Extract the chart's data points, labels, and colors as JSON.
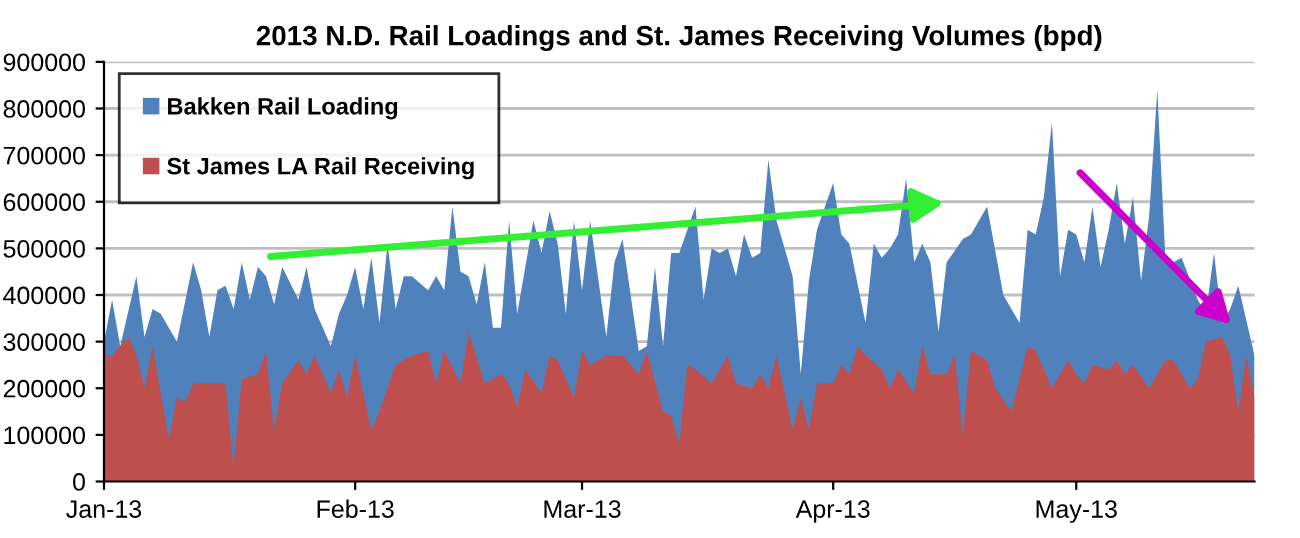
{
  "chart_data": {
    "type": "area",
    "title": "2013 N.D. Rail Loadings and St. James Receiving Volumes (bpd)",
    "series": [
      {
        "name": "Bakken Rail Loading",
        "color": "#4f81bd",
        "x": [
          "2013-01-01",
          "2013-01-02",
          "2013-01-03",
          "2013-01-05",
          "2013-01-06",
          "2013-01-07",
          "2013-01-08",
          "2013-01-09",
          "2013-01-10",
          "2013-01-12",
          "2013-01-13",
          "2013-01-14",
          "2013-01-15",
          "2013-01-16",
          "2013-01-17",
          "2013-01-18",
          "2013-01-19",
          "2013-01-20",
          "2013-01-21",
          "2013-01-22",
          "2013-01-23",
          "2013-01-25",
          "2013-01-26",
          "2013-01-27",
          "2013-01-29",
          "2013-01-30",
          "2013-01-31",
          "2013-02-01",
          "2013-02-02",
          "2013-02-03",
          "2013-02-04",
          "2013-02-05",
          "2013-02-06",
          "2013-02-07",
          "2013-02-08",
          "2013-02-10",
          "2013-02-11",
          "2013-02-12",
          "2013-02-13",
          "2013-02-14",
          "2013-02-15",
          "2013-02-16",
          "2013-02-17",
          "2013-02-18",
          "2013-02-19",
          "2013-02-20",
          "2013-02-21",
          "2013-02-23",
          "2013-02-24",
          "2013-02-25",
          "2013-02-26",
          "2013-02-27",
          "2013-02-28",
          "2013-03-01",
          "2013-03-02",
          "2013-03-04",
          "2013-03-05",
          "2013-03-06",
          "2013-03-08",
          "2013-03-09",
          "2013-03-10",
          "2013-03-11",
          "2013-03-12",
          "2013-03-13",
          "2013-03-15",
          "2013-03-16",
          "2013-03-17",
          "2013-03-18",
          "2013-03-19",
          "2013-03-20",
          "2013-03-21",
          "2013-03-22",
          "2013-03-23",
          "2013-03-24",
          "2013-03-25",
          "2013-03-27",
          "2013-03-28",
          "2013-03-29",
          "2013-03-30",
          "2013-04-01",
          "2013-04-02",
          "2013-04-03",
          "2013-04-05",
          "2013-04-06",
          "2013-04-07",
          "2013-04-08",
          "2013-04-09",
          "2013-04-10",
          "2013-04-11",
          "2013-04-12",
          "2013-04-13",
          "2013-04-14",
          "2013-04-15",
          "2013-04-17",
          "2013-04-18",
          "2013-04-19",
          "2013-04-20",
          "2013-04-22",
          "2013-04-24",
          "2013-04-25",
          "2013-04-26",
          "2013-04-27",
          "2013-04-28",
          "2013-04-29",
          "2013-04-30",
          "2013-05-01",
          "2013-05-02",
          "2013-05-03",
          "2013-05-04",
          "2013-05-05",
          "2013-05-06",
          "2013-05-07",
          "2013-05-08",
          "2013-05-09",
          "2013-05-10",
          "2013-05-11",
          "2013-05-12",
          "2013-05-13",
          "2013-05-14",
          "2013-05-16",
          "2013-05-17",
          "2013-05-18",
          "2013-05-19",
          "2013-05-20",
          "2013-05-21",
          "2013-05-23"
        ],
        "values": [
          300000,
          390000,
          290000,
          440000,
          310000,
          370000,
          360000,
          null,
          300000,
          470000,
          410000,
          310000,
          410000,
          420000,
          370000,
          470000,
          390000,
          460000,
          440000,
          380000,
          460000,
          390000,
          460000,
          370000,
          290000,
          360000,
          400000,
          460000,
          370000,
          480000,
          340000,
          510000,
          370000,
          440000,
          440000,
          410000,
          440000,
          410000,
          590000,
          450000,
          440000,
          380000,
          470000,
          330000,
          330000,
          560000,
          360000,
          560000,
          490000,
          580000,
          510000,
          360000,
          560000,
          410000,
          560000,
          310000,
          470000,
          520000,
          280000,
          290000,
          460000,
          290000,
          490000,
          490000,
          590000,
          390000,
          500000,
          490000,
          500000,
          440000,
          530000,
          480000,
          490000,
          690000,
          560000,
          440000,
          230000,
          430000,
          540000,
          640000,
          530000,
          510000,
          340000,
          510000,
          480000,
          500000,
          530000,
          650000,
          470000,
          510000,
          470000,
          320000,
          470000,
          520000,
          530000,
          560000,
          590000,
          400000,
          340000,
          540000,
          530000,
          610000,
          770000,
          440000,
          540000,
          530000,
          470000,
          590000,
          460000,
          540000,
          640000,
          510000,
          610000,
          430000,
          570000,
          840000,
          480000,
          470000,
          480000,
          390000,
          360000,
          490000,
          340000,
          370000,
          420000,
          270000
        ]
      },
      {
        "name": "St James LA Rail Receiving",
        "color": "#c0504d",
        "x": [
          "2013-01-01",
          "2013-01-02",
          "2013-01-04",
          "2013-01-05",
          "2013-01-06",
          "2013-01-07",
          "2013-01-09",
          "2013-01-10",
          "2013-01-11",
          "2013-01-12",
          "2013-01-14",
          "2013-01-16",
          "2013-01-17",
          "2013-01-18",
          "2013-01-20",
          "2013-01-21",
          "2013-01-22",
          "2013-01-23",
          "2013-01-25",
          "2013-01-26",
          "2013-01-27",
          "2013-01-29",
          "2013-01-30",
          "2013-01-31",
          "2013-02-01",
          "2013-02-03",
          "2013-02-04",
          "2013-02-06",
          "2013-02-08",
          "2013-02-10",
          "2013-02-11",
          "2013-02-12",
          "2013-02-14",
          "2013-02-15",
          "2013-02-17",
          "2013-02-19",
          "2013-02-20",
          "2013-02-21",
          "2013-02-22",
          "2013-02-24",
          "2013-02-25",
          "2013-02-26",
          "2013-02-28",
          "2013-03-01",
          "2013-03-02",
          "2013-03-04",
          "2013-03-06",
          "2013-03-08",
          "2013-03-09",
          "2013-03-11",
          "2013-03-12",
          "2013-03-13",
          "2013-03-14",
          "2013-03-15",
          "2013-03-17",
          "2013-03-18",
          "2013-03-19",
          "2013-03-20",
          "2013-03-22",
          "2013-03-23",
          "2013-03-24",
          "2013-03-25",
          "2013-03-27",
          "2013-03-28",
          "2013-03-29",
          "2013-03-30",
          "2013-04-01",
          "2013-04-02",
          "2013-04-03",
          "2013-04-04",
          "2013-04-05",
          "2013-04-07",
          "2013-04-08",
          "2013-04-09",
          "2013-04-11",
          "2013-04-12",
          "2013-04-13",
          "2013-04-15",
          "2013-04-16",
          "2013-04-17",
          "2013-04-18",
          "2013-04-20",
          "2013-04-21",
          "2013-04-23",
          "2013-04-25",
          "2013-04-26",
          "2013-04-27",
          "2013-04-28",
          "2013-04-30",
          "2013-05-01",
          "2013-05-02",
          "2013-05-03",
          "2013-05-05",
          "2013-05-06",
          "2013-05-07",
          "2013-05-08",
          "2013-05-10",
          "2013-05-12",
          "2013-05-13",
          "2013-05-15",
          "2013-05-16",
          "2013-05-17",
          "2013-05-19",
          "2013-05-20",
          "2013-05-21",
          "2013-05-22",
          "2013-05-23"
        ],
        "values": [
          270000,
          270000,
          310000,
          270000,
          200000,
          290000,
          90000,
          180000,
          170000,
          210000,
          210000,
          210000,
          30000,
          220000,
          230000,
          280000,
          110000,
          210000,
          260000,
          230000,
          270000,
          190000,
          240000,
          180000,
          270000,
          110000,
          150000,
          250000,
          270000,
          280000,
          210000,
          280000,
          210000,
          320000,
          210000,
          230000,
          210000,
          160000,
          240000,
          190000,
          270000,
          260000,
          180000,
          280000,
          250000,
          270000,
          270000,
          230000,
          280000,
          150000,
          140000,
          80000,
          250000,
          240000,
          210000,
          240000,
          270000,
          210000,
          200000,
          230000,
          200000,
          270000,
          110000,
          180000,
          110000,
          210000,
          210000,
          250000,
          230000,
          290000,
          270000,
          240000,
          200000,
          240000,
          190000,
          290000,
          230000,
          230000,
          270000,
          100000,
          280000,
          260000,
          200000,
          150000,
          290000,
          280000,
          240000,
          200000,
          260000,
          230000,
          210000,
          250000,
          240000,
          260000,
          230000,
          250000,
          200000,
          260000,
          260000,
          200000,
          220000,
          300000,
          310000,
          270000,
          150000,
          270000,
          180000
        ]
      }
    ],
    "xlim": [
      "2013-01-01",
      "2013-05-23"
    ],
    "xticks": [
      {
        "value": "2013-01-01",
        "label": "Jan-13"
      },
      {
        "value": "2013-02-01",
        "label": "Feb-13"
      },
      {
        "value": "2013-03-01",
        "label": "Mar-13"
      },
      {
        "value": "2013-04-01",
        "label": "Apr-13"
      },
      {
        "value": "2013-05-01",
        "label": "May-13"
      }
    ],
    "ylim": [
      0,
      900000
    ],
    "yticks": [
      0,
      100000,
      200000,
      300000,
      400000,
      500000,
      600000,
      700000,
      800000,
      900000
    ],
    "grid": "y",
    "legend": "top left"
  }
}
